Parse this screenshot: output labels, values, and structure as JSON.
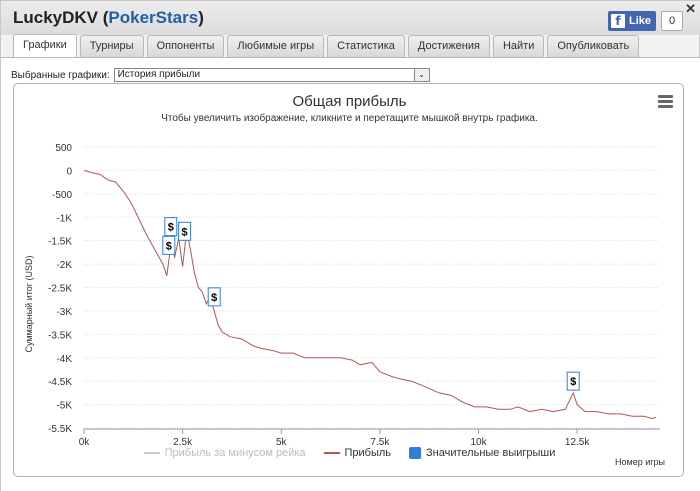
{
  "window": {
    "player": "LuckyDKV",
    "site": "PokerStars",
    "close_glyph": "✕",
    "fb_like": "Like",
    "fb_logo": "f",
    "fb_count": "0"
  },
  "tabs": [
    "Графики",
    "Турниры",
    "Оппоненты",
    "Любимые игры",
    "Статистика",
    "Достижения",
    "Найти",
    "Опубликовать"
  ],
  "active_tab": 0,
  "selector": {
    "label": "Выбранные графики:",
    "value": "История прибыли",
    "arrow": "⌄"
  },
  "icons": {
    "menu": "menu-icon",
    "close": "close-icon",
    "facebook": "facebook-icon",
    "dropdown": "chevron-down-icon"
  },
  "colors": {
    "profit_line": "#b85450",
    "rake_line": "#cccccc",
    "big_win": "#2f7ed8",
    "accent": "#1f5fa8"
  },
  "chart_data": {
    "type": "line",
    "title": "Общая прибыль",
    "subtitle": "Чтобы увеличить изображение, кликните и перетащите мышкой внутрь графика.",
    "xlabel": "Номер игры",
    "ylabel": "Суммарный итог (USD)",
    "xlim": [
      0,
      14600
    ],
    "ylim": [
      -5500,
      500
    ],
    "x_ticks": [
      0,
      2500,
      5000,
      7500,
      10000,
      12500
    ],
    "x_tick_labels": [
      "0k",
      "2.5k",
      "5k",
      "7.5k",
      "10k",
      "12.5k"
    ],
    "y_ticks": [
      500,
      0,
      -500,
      -1000,
      -1500,
      -2000,
      -2500,
      -3000,
      -3500,
      -4000,
      -4500,
      -5000,
      -5500
    ],
    "y_tick_labels": [
      "500",
      "0",
      "-500",
      "-1K",
      "-1.5K",
      "-2K",
      "-2.5K",
      "-3K",
      "-3.5K",
      "-4K",
      "-4.5K",
      "-5K",
      "-5.5K"
    ],
    "grid": true,
    "legend_position": "bottom",
    "series": [
      {
        "name": "Прибыль за минусом рейка",
        "visible": false,
        "x": [],
        "y": []
      },
      {
        "name": "Прибыль",
        "visible": true,
        "x": [
          0,
          200,
          400,
          600,
          800,
          1000,
          1200,
          1400,
          1600,
          1800,
          2000,
          2100,
          2200,
          2300,
          2400,
          2500,
          2600,
          2700,
          2800,
          2900,
          3000,
          3100,
          3200,
          3300,
          3400,
          3500,
          3700,
          4000,
          4300,
          4500,
          4800,
          5000,
          5300,
          5600,
          6000,
          6300,
          6500,
          6800,
          7000,
          7300,
          7500,
          7800,
          8000,
          8300,
          8600,
          9000,
          9300,
          9600,
          9900,
          10200,
          10500,
          10800,
          11000,
          11300,
          11600,
          11900,
          12200,
          12400,
          12500,
          12700,
          13000,
          13300,
          13600,
          13900,
          14200,
          14400,
          14500
        ],
        "y": [
          0,
          -50,
          -80,
          -200,
          -250,
          -450,
          -700,
          -1050,
          -1400,
          -1700,
          -2000,
          -2250,
          -1600,
          -1850,
          -1450,
          -2050,
          -1300,
          -1700,
          -2200,
          -2500,
          -2600,
          -2850,
          -2700,
          -3000,
          -3300,
          -3450,
          -3550,
          -3600,
          -3750,
          -3800,
          -3850,
          -3900,
          -3900,
          -4000,
          -4000,
          -4000,
          -4000,
          -4050,
          -4150,
          -4100,
          -4300,
          -4400,
          -4450,
          -4500,
          -4600,
          -4750,
          -4800,
          -4950,
          -5050,
          -5050,
          -5100,
          -5100,
          -5050,
          -5150,
          -5100,
          -5150,
          -5100,
          -4750,
          -5000,
          -5150,
          -5150,
          -5200,
          -5200,
          -5250,
          -5250,
          -5300,
          -5270
        ]
      }
    ],
    "big_wins": {
      "name": "Значительные выигрыши",
      "label": "$",
      "points": [
        {
          "x": 2200,
          "y": -1200
        },
        {
          "x": 2550,
          "y": -1300
        },
        {
          "x": 2150,
          "y": -1600
        },
        {
          "x": 3300,
          "y": -2700
        },
        {
          "x": 12400,
          "y": -4500
        }
      ]
    }
  }
}
